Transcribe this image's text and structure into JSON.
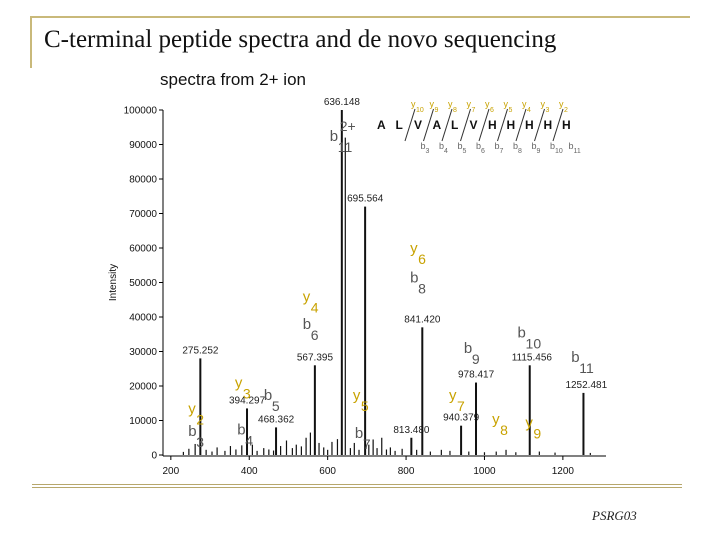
{
  "slide": {
    "title": "C-terminal peptide spectra and de novo sequencing",
    "footer": "PSRG03"
  },
  "colors": {
    "bar": "#111111",
    "b_ion": "#555555",
    "y_ion": "#c8a200",
    "frame": "#c9b97a"
  },
  "chart_data": {
    "type": "bar",
    "title": "spectra from 2+ ion",
    "xlabel": "",
    "ylabel": "Intensity",
    "xlim": [
      180,
      1310
    ],
    "ylim": [
      0,
      100000
    ],
    "xticks": [
      "200",
      "400",
      "600",
      "800",
      "1000",
      "1200"
    ],
    "yticks": [
      "0",
      "10000",
      "20000",
      "30000",
      "40000",
      "50000",
      "60000",
      "70000",
      "80000",
      "90000",
      "100000"
    ],
    "peaks": [
      {
        "x": 232,
        "y": 900
      },
      {
        "x": 246,
        "y": 1800
      },
      {
        "x": 262,
        "y": 3200
      },
      {
        "x": 275.252,
        "y": 28000,
        "label": "275.252"
      },
      {
        "x": 290,
        "y": 1500
      },
      {
        "x": 305,
        "y": 1000
      },
      {
        "x": 318,
        "y": 2200
      },
      {
        "x": 338,
        "y": 1200
      },
      {
        "x": 352,
        "y": 2600
      },
      {
        "x": 366,
        "y": 1600
      },
      {
        "x": 381,
        "y": 2800
      },
      {
        "x": 394.297,
        "y": 13500,
        "label": "394.297"
      },
      {
        "x": 408,
        "y": 3000
      },
      {
        "x": 420,
        "y": 1200
      },
      {
        "x": 437,
        "y": 2000
      },
      {
        "x": 450,
        "y": 1600
      },
      {
        "x": 462,
        "y": 1300
      },
      {
        "x": 468.362,
        "y": 8000,
        "label": "468.362"
      },
      {
        "x": 480,
        "y": 2600
      },
      {
        "x": 495,
        "y": 4200
      },
      {
        "x": 510,
        "y": 2000
      },
      {
        "x": 520,
        "y": 3000
      },
      {
        "x": 533,
        "y": 2500
      },
      {
        "x": 545,
        "y": 5000
      },
      {
        "x": 556,
        "y": 6500
      },
      {
        "x": 567.395,
        "y": 26000,
        "label": "567.395"
      },
      {
        "x": 578,
        "y": 3500
      },
      {
        "x": 590,
        "y": 2200
      },
      {
        "x": 600,
        "y": 1500
      },
      {
        "x": 611,
        "y": 3800
      },
      {
        "x": 625,
        "y": 4600
      },
      {
        "x": 636.148,
        "y": 100000,
        "label": "636.148"
      },
      {
        "x": 645,
        "y": 92000
      },
      {
        "x": 658,
        "y": 2000
      },
      {
        "x": 668,
        "y": 3500
      },
      {
        "x": 680,
        "y": 1500
      },
      {
        "x": 695.564,
        "y": 72000,
        "label": "695.564"
      },
      {
        "x": 705,
        "y": 3000
      },
      {
        "x": 716,
        "y": 4500
      },
      {
        "x": 726,
        "y": 2000
      },
      {
        "x": 738,
        "y": 5000
      },
      {
        "x": 750,
        "y": 1600
      },
      {
        "x": 760,
        "y": 2200
      },
      {
        "x": 772,
        "y": 1200
      },
      {
        "x": 790,
        "y": 1800
      },
      {
        "x": 813.48,
        "y": 5000,
        "label": "813.480"
      },
      {
        "x": 827,
        "y": 1500
      },
      {
        "x": 841.42,
        "y": 37000,
        "label": "841.420"
      },
      {
        "x": 862,
        "y": 1000
      },
      {
        "x": 890,
        "y": 1500
      },
      {
        "x": 912,
        "y": 1200
      },
      {
        "x": 940.379,
        "y": 8500,
        "label": "940.379"
      },
      {
        "x": 960,
        "y": 1000
      },
      {
        "x": 978.417,
        "y": 21000,
        "label": "978.417"
      },
      {
        "x": 1000,
        "y": 800
      },
      {
        "x": 1030,
        "y": 1000
      },
      {
        "x": 1055,
        "y": 1500
      },
      {
        "x": 1080,
        "y": 800
      },
      {
        "x": 1115.456,
        "y": 26000,
        "label": "1115.456"
      },
      {
        "x": 1140,
        "y": 1000
      },
      {
        "x": 1180,
        "y": 700
      },
      {
        "x": 1252.481,
        "y": 18000,
        "label": "1252.481"
      },
      {
        "x": 1270,
        "y": 600
      }
    ],
    "ion_labels": [
      {
        "ion": "b",
        "num": "11",
        "charge": "2+",
        "x": 636,
        "y": 91000
      },
      {
        "ion": "y",
        "num": "6",
        "x": 841,
        "y": 58500
      },
      {
        "ion": "b",
        "num": "8",
        "x": 841,
        "y": 50000
      },
      {
        "ion": "y",
        "num": "4",
        "x": 567,
        "y": 44500
      },
      {
        "ion": "b",
        "num": "6",
        "x": 567,
        "y": 36500
      },
      {
        "ion": "b",
        "num": "10",
        "x": 1115,
        "y": 34000
      },
      {
        "ion": "b",
        "num": "9",
        "x": 978,
        "y": 29500
      },
      {
        "ion": "b",
        "num": "11",
        "x": 1252,
        "y": 27000
      },
      {
        "ion": "y",
        "num": "3",
        "x": 394,
        "y": 19500
      },
      {
        "ion": "b",
        "num": "5",
        "x": 468,
        "y": 16000
      },
      {
        "ion": "y",
        "num": "5",
        "x": 695,
        "y": 16000
      },
      {
        "ion": "y",
        "num": "7",
        "x": 940,
        "y": 16000
      },
      {
        "ion": "y",
        "num": "2",
        "x": 275,
        "y": 12000
      },
      {
        "ion": "y",
        "num": "8",
        "x": 1050,
        "y": 9000
      },
      {
        "ion": "y",
        "num": "9",
        "x": 1135,
        "y": 8000
      },
      {
        "ion": "b",
        "num": "4",
        "x": 400,
        "y": 6000
      },
      {
        "ion": "b",
        "num": "3",
        "x": 275,
        "y": 5500
      },
      {
        "ion": "b",
        "num": "7",
        "x": 700,
        "y": 5000
      }
    ],
    "sequence": {
      "residues": [
        "A",
        "L",
        "V",
        "A",
        "L",
        "V",
        "H",
        "H",
        "H",
        "H",
        "H"
      ],
      "y_ions": [
        "10",
        "9",
        "8",
        "7",
        "6",
        "5",
        "4",
        "3",
        "2"
      ],
      "b_ions": [
        "3",
        "4",
        "5",
        "6",
        "7",
        "8",
        "9",
        "10",
        "11"
      ]
    }
  }
}
